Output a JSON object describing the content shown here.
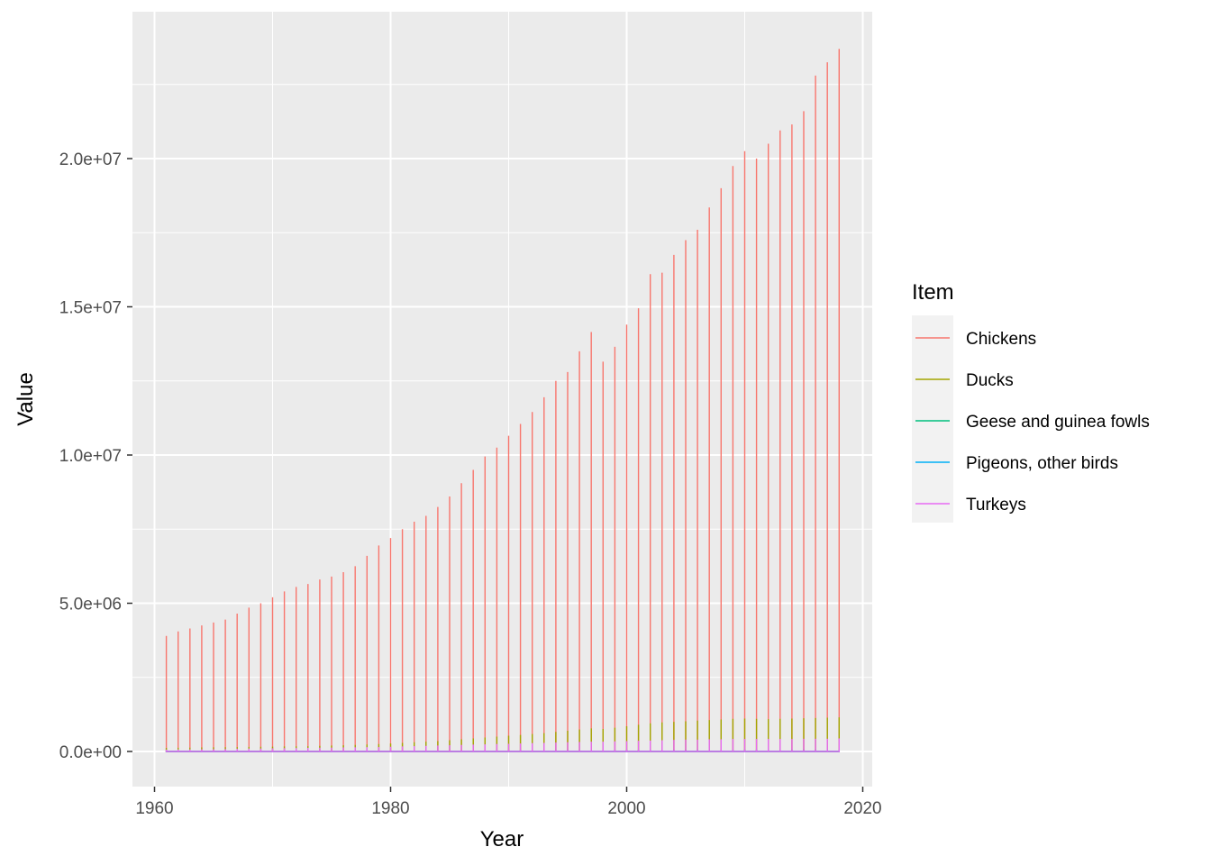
{
  "chart_data": {
    "type": "line",
    "xlabel": "Year",
    "ylabel": "Value",
    "xlim": [
      1960,
      2020
    ],
    "ylim": [
      0,
      24000000
    ],
    "x_ticks": [
      1960,
      1980,
      2000,
      2020
    ],
    "x_tick_labels": [
      "1960",
      "1980",
      "2000",
      "2020"
    ],
    "y_ticks": [
      0,
      5000000,
      10000000,
      15000000,
      20000000
    ],
    "y_tick_labels": [
      "0.0e+00",
      "5.0e+06",
      "1.0e+07",
      "1.5e+07",
      "2.0e+07"
    ],
    "grid": true,
    "legend": {
      "title": "Item",
      "position": "right"
    },
    "x": [
      1961,
      1962,
      1963,
      1964,
      1965,
      1966,
      1967,
      1968,
      1969,
      1970,
      1971,
      1972,
      1973,
      1974,
      1975,
      1976,
      1977,
      1978,
      1979,
      1980,
      1981,
      1982,
      1983,
      1984,
      1985,
      1986,
      1987,
      1988,
      1989,
      1990,
      1991,
      1992,
      1993,
      1994,
      1995,
      1996,
      1997,
      1998,
      1999,
      2000,
      2001,
      2002,
      2003,
      2004,
      2005,
      2006,
      2007,
      2008,
      2009,
      2010,
      2011,
      2012,
      2013,
      2014,
      2015,
      2016,
      2017,
      2018
    ],
    "series": [
      {
        "name": "Chickens",
        "color": "#F8766D",
        "values": [
          3900000,
          4050000,
          4150000,
          4250000,
          4350000,
          4450000,
          4650000,
          4850000,
          5000000,
          5200000,
          5400000,
          5550000,
          5650000,
          5800000,
          5900000,
          6050000,
          6250000,
          6600000,
          6950000,
          7200000,
          7500000,
          7750000,
          7950000,
          8250000,
          8600000,
          9050000,
          9500000,
          9950000,
          10250000,
          10650000,
          11050000,
          11450000,
          11950000,
          12500000,
          12800000,
          13500000,
          14150000,
          13150000,
          13650000,
          14400000,
          14950000,
          16100000,
          16150000,
          16750000,
          17250000,
          17600000,
          18350000,
          19000000,
          19750000,
          20250000,
          20000000,
          20500000,
          20950000,
          21150000,
          21600000,
          22800000,
          23250000,
          23700000
        ]
      },
      {
        "name": "Ducks",
        "color": "#A3A500",
        "values": [
          120000,
          125000,
          130000,
          135000,
          140000,
          145000,
          150000,
          155000,
          160000,
          165000,
          170000,
          175000,
          180000,
          190000,
          200000,
          210000,
          220000,
          235000,
          250000,
          270000,
          290000,
          310000,
          330000,
          350000,
          380000,
          410000,
          440000,
          470000,
          500000,
          530000,
          560000,
          590000,
          620000,
          660000,
          700000,
          740000,
          780000,
          760000,
          800000,
          850000,
          900000,
          950000,
          980000,
          1000000,
          1020000,
          1040000,
          1060000,
          1080000,
          1100000,
          1110000,
          1100000,
          1090000,
          1100000,
          1110000,
          1120000,
          1130000,
          1140000,
          1150000
        ]
      },
      {
        "name": "Geese and guinea fowls",
        "color": "#00BF7D",
        "values": [
          20000,
          20000,
          21000,
          21000,
          22000,
          22000,
          23000,
          23000,
          24000,
          24000,
          25000,
          25000,
          26000,
          26000,
          27000,
          27000,
          28000,
          28000,
          29000,
          29000,
          30000,
          31000,
          32000,
          33000,
          34000,
          35000,
          36000,
          37000,
          38000,
          39000,
          40000,
          42000,
          44000,
          46000,
          48000,
          50000,
          52000,
          51000,
          53000,
          55000,
          57000,
          59000,
          60000,
          61000,
          62000,
          63000,
          64000,
          65000,
          66000,
          67000,
          68000,
          69000,
          70000,
          71000,
          72000,
          73000,
          74000,
          75000
        ]
      },
      {
        "name": "Pigeons, other birds",
        "color": "#00B0F6",
        "values": [
          5000,
          5000,
          5000,
          5000,
          5000,
          5000,
          5000,
          5000,
          5000,
          5000,
          5000,
          5000,
          5000,
          5000,
          5000,
          5000,
          5000,
          5000,
          5000,
          5000,
          5000,
          5000,
          5000,
          5000,
          5000,
          5000,
          5000,
          5000,
          5000,
          5000,
          5000,
          5000,
          5000,
          5000,
          5000,
          5000,
          5000,
          5000,
          5000,
          5000,
          5000,
          5000,
          5000,
          5000,
          5000,
          5000,
          5000,
          5000,
          5000,
          5000,
          5000,
          5000,
          5000,
          5000,
          5000,
          5000,
          5000,
          5000
        ]
      },
      {
        "name": "Turkeys",
        "color": "#E76BF3",
        "values": [
          60000,
          65000,
          70000,
          75000,
          80000,
          85000,
          90000,
          95000,
          100000,
          105000,
          110000,
          115000,
          120000,
          125000,
          130000,
          135000,
          140000,
          145000,
          150000,
          160000,
          170000,
          180000,
          190000,
          200000,
          210000,
          220000,
          230000,
          240000,
          250000,
          260000,
          270000,
          280000,
          290000,
          300000,
          310000,
          320000,
          330000,
          330000,
          340000,
          350000,
          360000,
          370000,
          380000,
          390000,
          400000,
          400000,
          410000,
          410000,
          420000,
          420000,
          420000,
          420000,
          420000,
          420000,
          430000,
          430000,
          430000,
          440000
        ]
      }
    ]
  }
}
